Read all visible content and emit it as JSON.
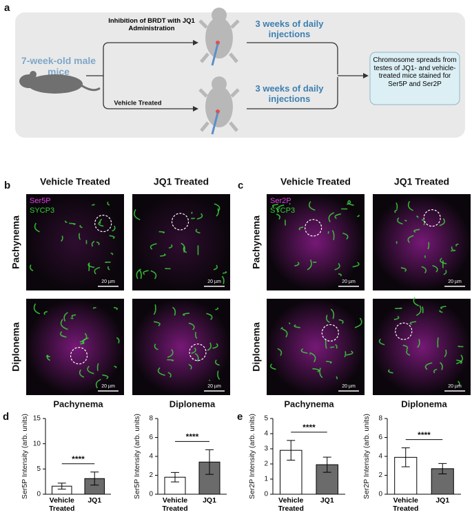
{
  "panel_labels": [
    "a",
    "b",
    "c",
    "d",
    "e"
  ],
  "panel_a": {
    "start": "7-week-old male mice",
    "treatment_top": "Inhibition of BRDT with JQ1 Administration",
    "treatment_bottom": "Vehicle Treated",
    "duration_top": "3 weeks of daily injections",
    "duration_bottom": "3 weeks of daily injections",
    "outcome": "Chromosome spreads from testes of JQ1- and vehicle-treated mice stained for Ser5P and Ser2P"
  },
  "panel_b": {
    "columns": [
      "Vehicle Treated",
      "JQ1 Treated"
    ],
    "rows": [
      "Pachynema",
      "Diplonema"
    ],
    "stains": [
      "Ser5P",
      "SYCP3"
    ],
    "scale_bar": "20 µm"
  },
  "panel_c": {
    "columns": [
      "Vehicle Treated",
      "JQ1 Treated"
    ],
    "rows": [
      "Pachynema",
      "Diplonema"
    ],
    "stains": [
      "Ser2P",
      "SYCP3"
    ],
    "scale_bar": "20 µm"
  },
  "chart_data": [
    {
      "type": "bar",
      "title": "Pachynema",
      "y_label": "Ser5P Intensity (arb. units)",
      "categories": [
        "Vehicle Treated",
        "JQ1"
      ],
      "values": [
        1.6,
        3.1
      ],
      "errors": [
        0.6,
        1.3
      ],
      "colors": [
        "#ffffff",
        "#6b6b6b"
      ],
      "ylim": [
        0,
        15
      ],
      "yticks": [
        0,
        5,
        10,
        15
      ],
      "annotation": "****"
    },
    {
      "type": "bar",
      "title": "Diplonema",
      "y_label": "Ser5P Intensity (arb. units)",
      "categories": [
        "Vehicle Treated",
        "JQ1"
      ],
      "values": [
        1.8,
        3.4
      ],
      "errors": [
        0.5,
        1.3
      ],
      "colors": [
        "#ffffff",
        "#6b6b6b"
      ],
      "ylim": [
        0,
        8
      ],
      "yticks": [
        0,
        2,
        4,
        6,
        8
      ],
      "annotation": "****"
    },
    {
      "type": "bar",
      "title": "Pachynema",
      "y_label": "Ser2P Intensity (arb. units)",
      "categories": [
        "Vehicle Treated",
        "JQ1"
      ],
      "values": [
        2.9,
        1.95
      ],
      "errors": [
        0.65,
        0.5
      ],
      "colors": [
        "#ffffff",
        "#6b6b6b"
      ],
      "ylim": [
        0,
        5
      ],
      "yticks": [
        0,
        1,
        2,
        3,
        4,
        5
      ],
      "annotation": "****"
    },
    {
      "type": "bar",
      "title": "Diplonema",
      "y_label": "Ser2P Intensity (arb. units)",
      "categories": [
        "Vehicle Treated",
        "JQ1"
      ],
      "values": [
        3.9,
        2.7
      ],
      "errors": [
        1.0,
        0.55
      ],
      "colors": [
        "#ffffff",
        "#6b6b6b"
      ],
      "ylim": [
        0,
        8
      ],
      "yticks": [
        0,
        2,
        4,
        6,
        8
      ],
      "annotation": "****"
    }
  ]
}
